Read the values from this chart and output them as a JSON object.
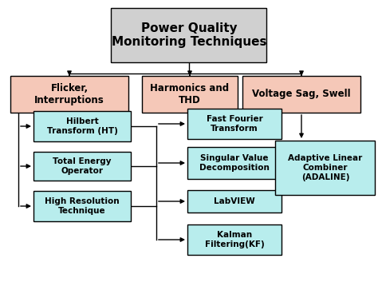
{
  "title": "Power Quality\nMonitoring Techniques",
  "title_box_color": "#d0d0d0",
  "title_box_edge": "#000000",
  "level2_color": "#f5c8b8",
  "level3_color": "#b8eded",
  "level2_nodes": [
    "Flicker,\nInterruptions",
    "Harmonics and\nTHD",
    "Voltage Sag, Swell"
  ],
  "left_children": [
    "Hilbert\nTransform (HT)",
    "Total Energy\nOperator",
    "High Resolution\nTechnique"
  ],
  "mid_children": [
    "Fast Fourier\nTransform",
    "Singular Value\nDecomposition",
    "LabVIEW",
    "Kalman\nFiltering(KF)"
  ],
  "right_child": "Adaptive Linear\nCombiner\n(ADALINE)",
  "bg_color": "#ffffff",
  "edge_color": "#000000",
  "text_color": "#000000",
  "fontsize_title": 11,
  "fontsize_level2": 8.5,
  "fontsize_level3": 7.5
}
